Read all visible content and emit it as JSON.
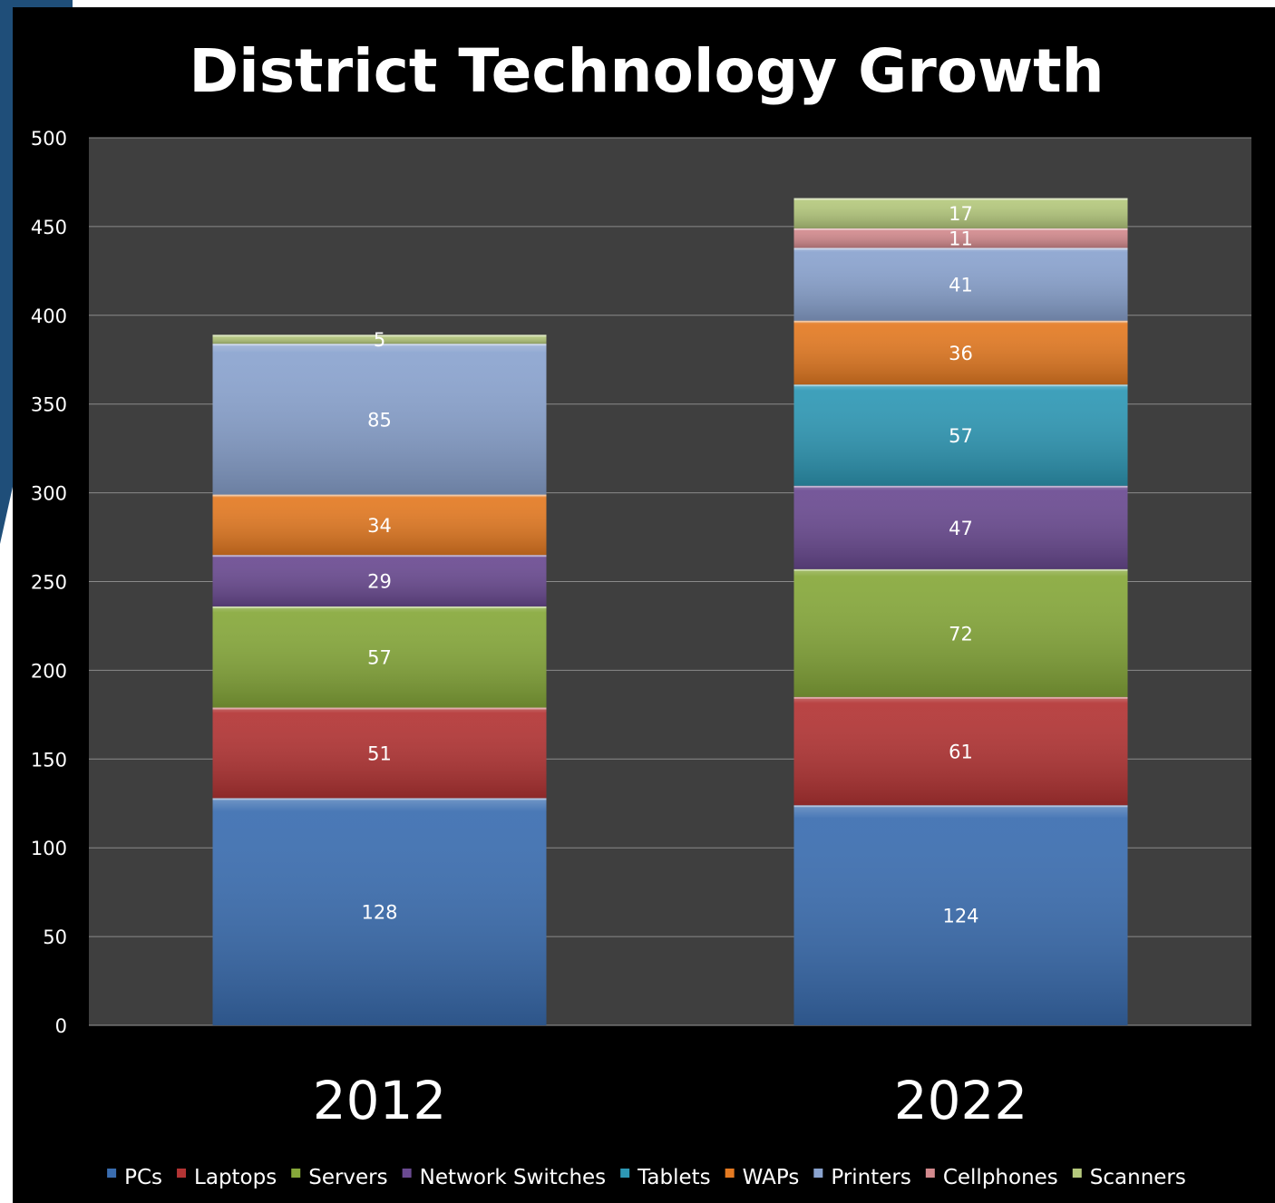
{
  "chart_data": {
    "type": "bar",
    "stacked": true,
    "title": "District Technology Growth",
    "categories": [
      "2012",
      "2022"
    ],
    "series": [
      {
        "name": "PCs",
        "values": [
          128,
          124
        ],
        "color": "#3a6db0"
      },
      {
        "name": "Laptops",
        "values": [
          51,
          61
        ],
        "color": "#b33434"
      },
      {
        "name": "Servers",
        "values": [
          57,
          72
        ],
        "color": "#86a83a"
      },
      {
        "name": "Network Switches",
        "values": [
          29,
          47
        ],
        "color": "#6a4a91"
      },
      {
        "name": "Tablets",
        "values": [
          0,
          57
        ],
        "color": "#2e98b5"
      },
      {
        "name": "WAPs",
        "values": [
          34,
          36
        ],
        "color": "#e47a22"
      },
      {
        "name": "Printers",
        "values": [
          85,
          41
        ],
        "color": "#8aa3cf"
      },
      {
        "name": "Cellphones",
        "values": [
          0,
          11
        ],
        "color": "#d38a8e"
      },
      {
        "name": "Scanners",
        "values": [
          5,
          17
        ],
        "color": "#b5c97d"
      }
    ],
    "ylim": [
      0,
      500
    ],
    "yticks": [
      0,
      50,
      100,
      150,
      200,
      250,
      300,
      350,
      400,
      450,
      500
    ],
    "grid": true,
    "legend_position": "bottom",
    "data_labels": true,
    "background": "#000000",
    "plot_background": "#3f3f3f"
  }
}
